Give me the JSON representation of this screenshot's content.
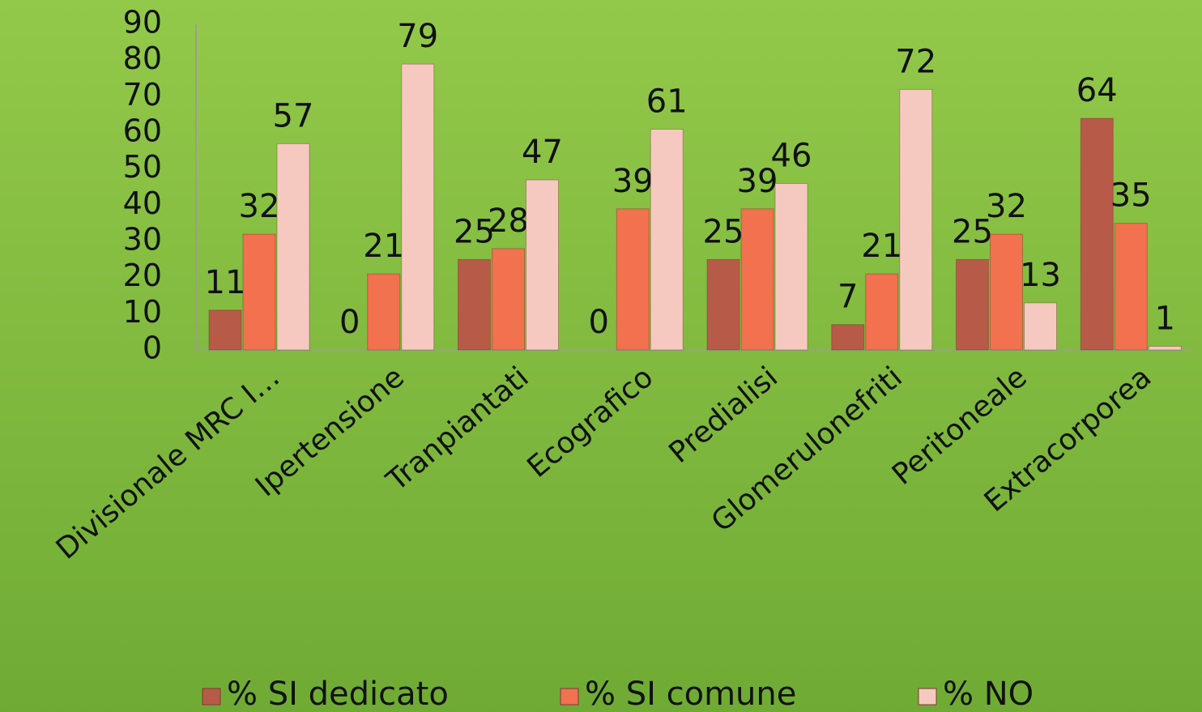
{
  "chart_data": {
    "type": "bar",
    "categories": [
      "Divisionale MRC I…",
      "Ipertensione",
      "Tranpiantati",
      "Ecografico",
      "Predialisi",
      "Glomerulonefriti",
      "Peritoneale",
      "Extracorporea"
    ],
    "series": [
      {
        "name": "% SI dedicato",
        "color": "#b85a48",
        "values": [
          11,
          0,
          25,
          0,
          25,
          7,
          25,
          64
        ]
      },
      {
        "name": "% SI comune",
        "color": "#f2714f",
        "values": [
          32,
          21,
          28,
          39,
          39,
          21,
          32,
          35
        ]
      },
      {
        "name": "% NO",
        "color": "#f6c9c0",
        "values": [
          57,
          79,
          47,
          61,
          46,
          72,
          13,
          1
        ]
      }
    ],
    "ylim": [
      0,
      90
    ],
    "yticks": [
      0,
      10,
      20,
      30,
      40,
      50,
      60,
      70,
      80,
      90
    ],
    "grid": false,
    "legend": "bottom"
  }
}
